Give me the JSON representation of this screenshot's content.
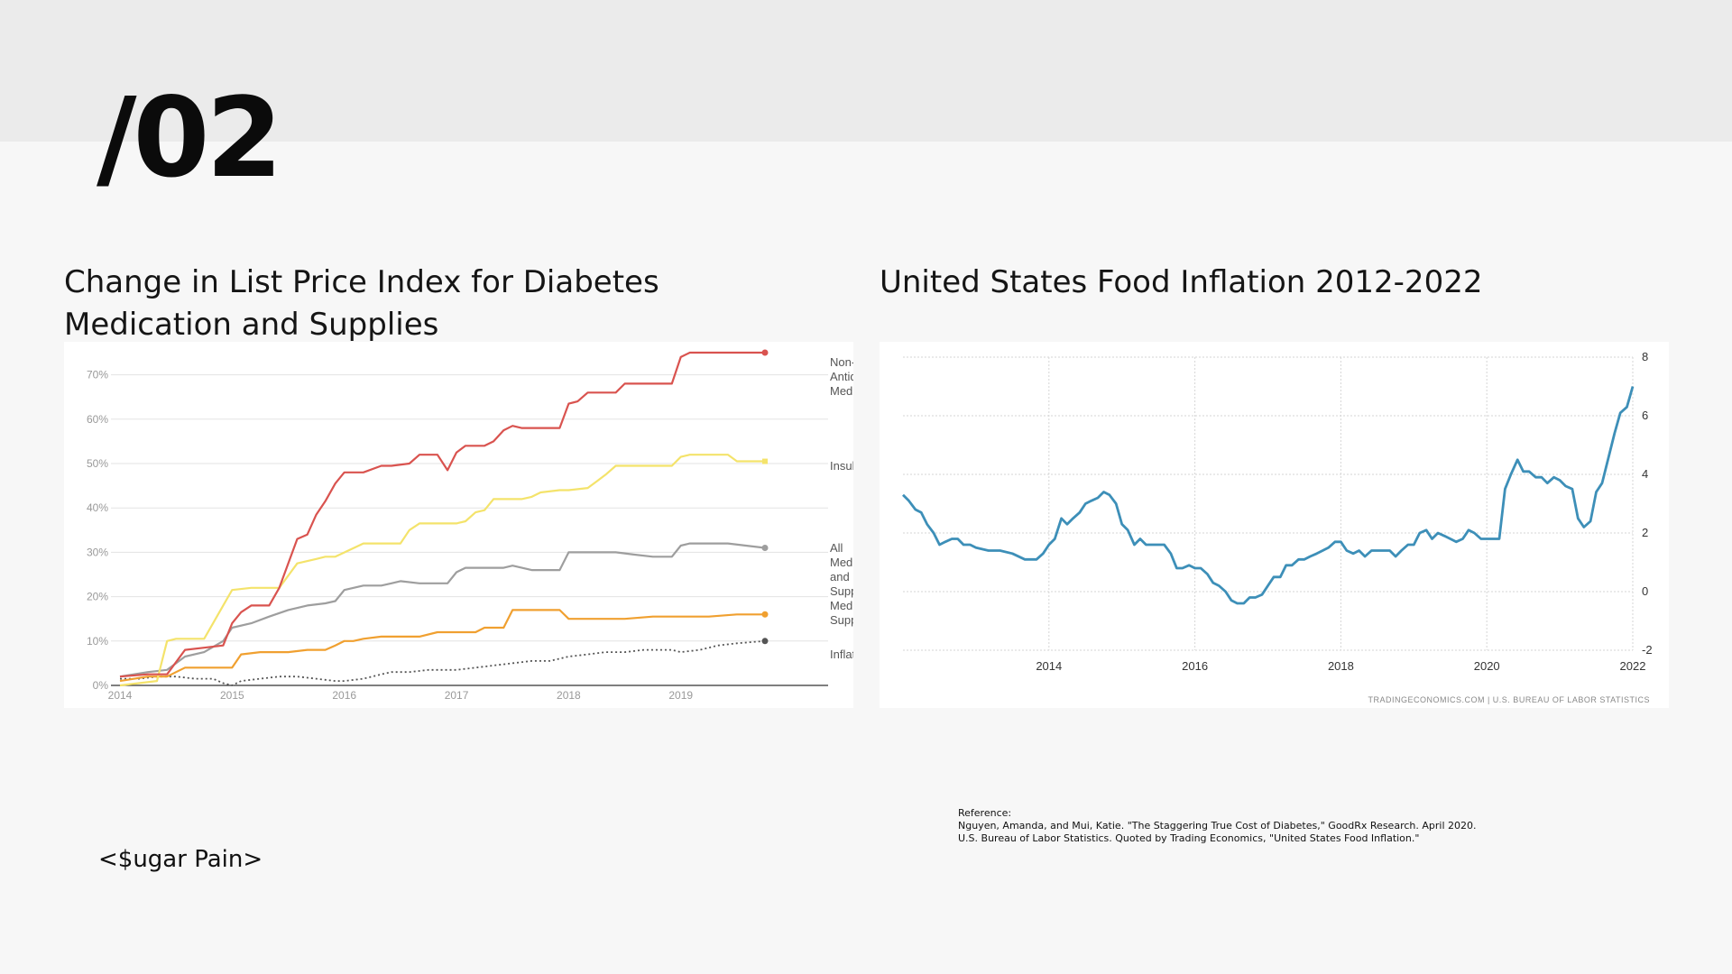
{
  "slide_number": "/02",
  "footer_tag": "<$ugar Pain>",
  "left_title": "Change in List Price Index for Diabetes Medication and Supplies",
  "right_title": "United States Food Inflation 2012-2022",
  "references": {
    "heading": "Reference:",
    "lines": [
      "Nguyen, Amanda, and Mui, Katie. \"The Staggering True Cost of Diabetes,\" GoodRx Research. April 2020.",
      "U.S. Bureau of Labor Statistics. Quoted by Trading Economics, \"United States Food Inflation.\""
    ]
  },
  "chart_data": [
    {
      "type": "line",
      "title": "Change in List Price Index for Diabetes Medication and Supplies",
      "xlabel": "",
      "ylabel": "",
      "xlim": [
        2014,
        2019.75
      ],
      "ylim": [
        0,
        75
      ],
      "x_ticks": [
        2014,
        2015,
        2016,
        2017,
        2018,
        2019
      ],
      "x_tick_labels": [
        "2014",
        "2015",
        "2016",
        "2017",
        "2018",
        "2019"
      ],
      "y_ticks": [
        0,
        10,
        20,
        30,
        40,
        50,
        60,
        70
      ],
      "y_tick_labels": [
        "0%",
        "10%",
        "20%",
        "30%",
        "40%",
        "50%",
        "60%",
        "70%"
      ],
      "grid": true,
      "series": [
        {
          "name": "Non-Insulin Antidiabetic Medication",
          "label_lines": [
            "Non-Insulin",
            "Antidiabetic",
            "Medication"
          ],
          "color": "#d9534f",
          "style": "solid",
          "x": [
            2014,
            2014.25,
            2014.42,
            2014.58,
            2014.75,
            2014.92,
            2015,
            2015.08,
            2015.17,
            2015.33,
            2015.42,
            2015.58,
            2015.67,
            2015.75,
            2015.83,
            2015.92,
            2016,
            2016.08,
            2016.17,
            2016.33,
            2016.42,
            2016.58,
            2016.67,
            2016.83,
            2016.92,
            2017,
            2017.08,
            2017.17,
            2017.25,
            2017.33,
            2017.42,
            2017.5,
            2017.58,
            2017.75,
            2017.92,
            2018,
            2018.08,
            2018.17,
            2018.25,
            2018.42,
            2018.5,
            2018.58,
            2018.75,
            2018.92,
            2019,
            2019.08,
            2019.25,
            2019.5,
            2019.75
          ],
          "y": [
            2,
            2.5,
            2.5,
            8,
            8.5,
            9,
            14,
            16.5,
            18,
            18,
            22,
            33,
            34,
            38.5,
            41.5,
            45.5,
            48,
            48,
            48,
            49.5,
            49.5,
            50,
            52,
            52,
            48.5,
            52.5,
            54,
            54,
            54,
            55,
            57.5,
            58.5,
            58,
            58,
            58,
            63.5,
            64,
            66,
            66,
            66,
            68,
            68,
            68,
            68,
            74,
            75,
            75,
            75,
            75
          ]
        },
        {
          "name": "Insulin",
          "label_lines": [
            "Insulin"
          ],
          "color": "#f4e36b",
          "style": "solid",
          "x": [
            2014,
            2014.17,
            2014.33,
            2014.42,
            2014.5,
            2014.67,
            2014.75,
            2014.83,
            2014.92,
            2015,
            2015.17,
            2015.25,
            2015.33,
            2015.42,
            2015.58,
            2015.75,
            2015.83,
            2015.92,
            2016.17,
            2016.42,
            2016.5,
            2016.58,
            2016.67,
            2016.83,
            2017,
            2017.08,
            2017.17,
            2017.25,
            2017.33,
            2017.58,
            2017.67,
            2017.75,
            2017.92,
            2018,
            2018.17,
            2018.25,
            2018.33,
            2018.42,
            2018.5,
            2018.92,
            2019,
            2019.08,
            2019.25,
            2019.42,
            2019.5,
            2019.75
          ],
          "y": [
            0,
            0.5,
            1,
            10,
            10.5,
            10.5,
            10.5,
            14,
            18,
            21.5,
            22,
            22,
            22,
            22,
            27.5,
            28.5,
            29,
            29,
            32,
            32,
            32,
            35,
            36.5,
            36.5,
            36.5,
            37,
            39,
            39.5,
            42,
            42,
            42.5,
            43.5,
            44,
            44,
            44.5,
            46,
            47.5,
            49.5,
            49.5,
            49.5,
            51.5,
            52,
            52,
            52,
            50.5,
            50.5
          ]
        },
        {
          "name": "All Medication and Supplies",
          "label_lines": [
            "All",
            "Medication",
            "and",
            "Supplies"
          ],
          "color": "#9e9e9e",
          "style": "solid",
          "x": [
            2014,
            2014.25,
            2014.42,
            2014.5,
            2014.58,
            2014.75,
            2014.92,
            2015,
            2015.17,
            2015.33,
            2015.5,
            2015.67,
            2015.83,
            2015.92,
            2016,
            2016.17,
            2016.33,
            2016.42,
            2016.5,
            2016.67,
            2016.83,
            2016.92,
            2017,
            2017.08,
            2017.25,
            2017.42,
            2017.5,
            2017.67,
            2017.92,
            2018,
            2018.25,
            2018.42,
            2018.58,
            2018.75,
            2018.92,
            2019,
            2019.08,
            2019.25,
            2019.42,
            2019.58,
            2019.75
          ],
          "y": [
            2,
            3,
            3.5,
            5,
            6.5,
            7.5,
            10,
            13,
            14,
            15.5,
            17,
            18,
            18.5,
            19,
            21.5,
            22.5,
            22.5,
            23,
            23.5,
            23,
            23,
            23,
            25.5,
            26.5,
            26.5,
            26.5,
            27,
            26,
            26,
            30,
            30,
            30,
            29.5,
            29,
            29,
            31.5,
            32,
            32,
            32,
            31.5,
            31
          ]
        },
        {
          "name": "Medical Supplies",
          "label_lines": [
            "Medical",
            "Supplies"
          ],
          "color": "#f0a030",
          "style": "solid",
          "x": [
            2014,
            2014.25,
            2014.42,
            2014.5,
            2014.58,
            2014.75,
            2014.92,
            2015,
            2015.08,
            2015.25,
            2015.5,
            2015.67,
            2015.83,
            2015.92,
            2016,
            2016.08,
            2016.17,
            2016.33,
            2016.5,
            2016.67,
            2016.83,
            2017,
            2017.17,
            2017.25,
            2017.42,
            2017.5,
            2017.58,
            2017.75,
            2017.92,
            2018,
            2018.25,
            2018.5,
            2018.75,
            2018.92,
            2019,
            2019.25,
            2019.5,
            2019.75
          ],
          "y": [
            1,
            2,
            2,
            3,
            4,
            4,
            4,
            4,
            7,
            7.5,
            7.5,
            8,
            8,
            9,
            10,
            10,
            10.5,
            11,
            11,
            11,
            12,
            12,
            12,
            13,
            13,
            17,
            17,
            17,
            17,
            15,
            15,
            15,
            15.5,
            15.5,
            15.5,
            15.5,
            16,
            16
          ]
        },
        {
          "name": "Inflation",
          "label_lines": [
            "Inflation"
          ],
          "color": "#555555",
          "style": "dotted",
          "x": [
            2014,
            2014.17,
            2014.33,
            2014.5,
            2014.67,
            2014.83,
            2014.92,
            2015,
            2015.08,
            2015.25,
            2015.42,
            2015.58,
            2015.75,
            2015.92,
            2016,
            2016.17,
            2016.33,
            2016.42,
            2016.58,
            2016.75,
            2016.92,
            2017,
            2017.17,
            2017.33,
            2017.5,
            2017.67,
            2017.83,
            2018,
            2018.17,
            2018.33,
            2018.5,
            2018.67,
            2018.83,
            2018.92,
            2019,
            2019.17,
            2019.33,
            2019.5,
            2019.75
          ],
          "y": [
            1.5,
            1.5,
            2,
            2,
            1.5,
            1.5,
            0.5,
            0,
            1,
            1.5,
            2,
            2,
            1.5,
            1,
            1,
            1.5,
            2.5,
            3,
            3,
            3.5,
            3.5,
            3.5,
            4,
            4.5,
            5,
            5.5,
            5.5,
            6.5,
            7,
            7.5,
            7.5,
            8,
            8,
            8,
            7.5,
            8,
            9,
            9.5,
            10
          ]
        }
      ]
    },
    {
      "type": "line",
      "title": "United States Food Inflation 2012-2022",
      "xlabel": "",
      "ylabel": "",
      "source": "TRADINGECONOMICS.COM | U.S. BUREAU OF LABOR STATISTICS",
      "xlim": [
        2012,
        2022
      ],
      "ylim": [
        -2,
        8
      ],
      "x_ticks": [
        2014,
        2016,
        2018,
        2020,
        2022
      ],
      "x_tick_labels": [
        "2014",
        "2016",
        "2018",
        "2020",
        "2022"
      ],
      "y_ticks": [
        -2,
        0,
        2,
        4,
        6,
        8
      ],
      "y_tick_labels": [
        "-2",
        "0",
        "2",
        "4",
        "6",
        "8"
      ],
      "y_axis_side": "right",
      "grid": true,
      "series": [
        {
          "name": "",
          "color": "#3d8fb8",
          "x": [
            2012,
            2012.08,
            2012.17,
            2012.25,
            2012.33,
            2012.42,
            2012.5,
            2012.58,
            2012.67,
            2012.75,
            2012.83,
            2012.92,
            2013,
            2013.17,
            2013.33,
            2013.5,
            2013.67,
            2013.83,
            2013.92,
            2014,
            2014.08,
            2014.17,
            2014.25,
            2014.33,
            2014.42,
            2014.5,
            2014.58,
            2014.67,
            2014.75,
            2014.83,
            2014.92,
            2015,
            2015.08,
            2015.17,
            2015.25,
            2015.33,
            2015.42,
            2015.5,
            2015.58,
            2015.67,
            2015.75,
            2015.83,
            2015.92,
            2016,
            2016.08,
            2016.17,
            2016.25,
            2016.33,
            2016.42,
            2016.5,
            2016.58,
            2016.67,
            2016.75,
            2016.83,
            2016.92,
            2017,
            2017.08,
            2017.17,
            2017.25,
            2017.33,
            2017.42,
            2017.5,
            2017.58,
            2017.67,
            2017.75,
            2017.83,
            2017.92,
            2018,
            2018.08,
            2018.17,
            2018.25,
            2018.33,
            2018.42,
            2018.5,
            2018.58,
            2018.67,
            2018.75,
            2018.83,
            2018.92,
            2019,
            2019.08,
            2019.17,
            2019.25,
            2019.33,
            2019.42,
            2019.5,
            2019.58,
            2019.67,
            2019.75,
            2019.83,
            2019.92,
            2020,
            2020.08,
            2020.17,
            2020.25,
            2020.33,
            2020.42,
            2020.5,
            2020.58,
            2020.67,
            2020.75,
            2020.83,
            2020.92,
            2021,
            2021.08,
            2021.17,
            2021.25,
            2021.33,
            2021.42,
            2021.5,
            2021.58,
            2021.67,
            2021.75,
            2021.83,
            2021.92,
            2022
          ],
          "y": [
            3.3,
            3.1,
            2.8,
            2.7,
            2.3,
            2.0,
            1.6,
            1.7,
            1.8,
            1.8,
            1.6,
            1.6,
            1.5,
            1.4,
            1.4,
            1.3,
            1.1,
            1.1,
            1.3,
            1.6,
            1.8,
            2.5,
            2.3,
            2.5,
            2.7,
            3.0,
            3.1,
            3.2,
            3.4,
            3.3,
            3.0,
            2.3,
            2.1,
            1.6,
            1.8,
            1.6,
            1.6,
            1.6,
            1.6,
            1.3,
            0.8,
            0.8,
            0.9,
            0.8,
            0.8,
            0.6,
            0.3,
            0.2,
            0.0,
            -0.3,
            -0.4,
            -0.4,
            -0.2,
            -0.2,
            -0.1,
            0.2,
            0.5,
            0.5,
            0.9,
            0.9,
            1.1,
            1.1,
            1.2,
            1.3,
            1.4,
            1.5,
            1.7,
            1.7,
            1.4,
            1.3,
            1.4,
            1.2,
            1.4,
            1.4,
            1.4,
            1.4,
            1.2,
            1.4,
            1.6,
            1.6,
            2.0,
            2.1,
            1.8,
            2.0,
            1.9,
            1.8,
            1.7,
            1.8,
            2.1,
            2.0,
            1.8,
            1.8,
            1.8,
            1.8,
            3.5,
            4.0,
            4.5,
            4.1,
            4.1,
            3.9,
            3.9,
            3.7,
            3.9,
            3.8,
            3.6,
            3.5,
            2.5,
            2.2,
            2.4,
            3.4,
            3.7,
            4.6,
            5.4,
            6.1,
            6.3,
            7.0
          ]
        }
      ]
    }
  ]
}
